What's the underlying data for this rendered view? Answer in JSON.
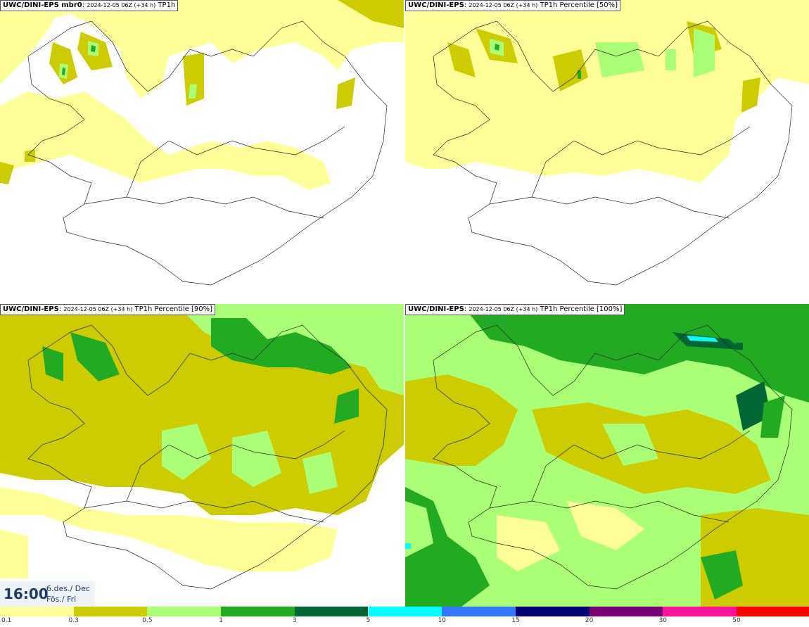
{
  "panels": [
    {
      "model": "UWC/DINI-EPS mbr0",
      "run": "2024-12-05 06Z (+34 h)",
      "field": "TP1h"
    },
    {
      "model": "UWC/DINI-EPS",
      "run": "2024-12-05 06Z (+34 h)",
      "field": "TP1h Percentile [50%]"
    },
    {
      "model": "UWC/DINI-EPS",
      "run": "2024-12-05 06Z (+34 h)",
      "field": "TP1h Percentile [90%]"
    },
    {
      "model": "UWC/DINI-EPS",
      "run": "2024-12-05 06Z (+34 h)",
      "field": "TP1h Percentile [100%]"
    }
  ],
  "valid_time": {
    "hour": "16:00",
    "date": "6.des./ Dec",
    "weekday": "Fös./ Fri"
  },
  "legend": {
    "ticks": [
      "0.1",
      "0.3",
      "0.5",
      "1",
      "3",
      "5",
      "10",
      "15",
      "20",
      "30",
      "50"
    ],
    "colors": [
      "#ffff99",
      "#cccc00",
      "#aaff77",
      "#22aa22",
      "#006633",
      "#00ffff",
      "#3377ff",
      "#000077",
      "#770077",
      "#ff1199",
      "#ff0000"
    ]
  },
  "map_colors": {
    "low": "#ffff99",
    "mid": "#cccc00",
    "light_green": "#aaff77",
    "green": "#22aa22",
    "dark_green": "#006633",
    "cyan": "#00ffff"
  }
}
